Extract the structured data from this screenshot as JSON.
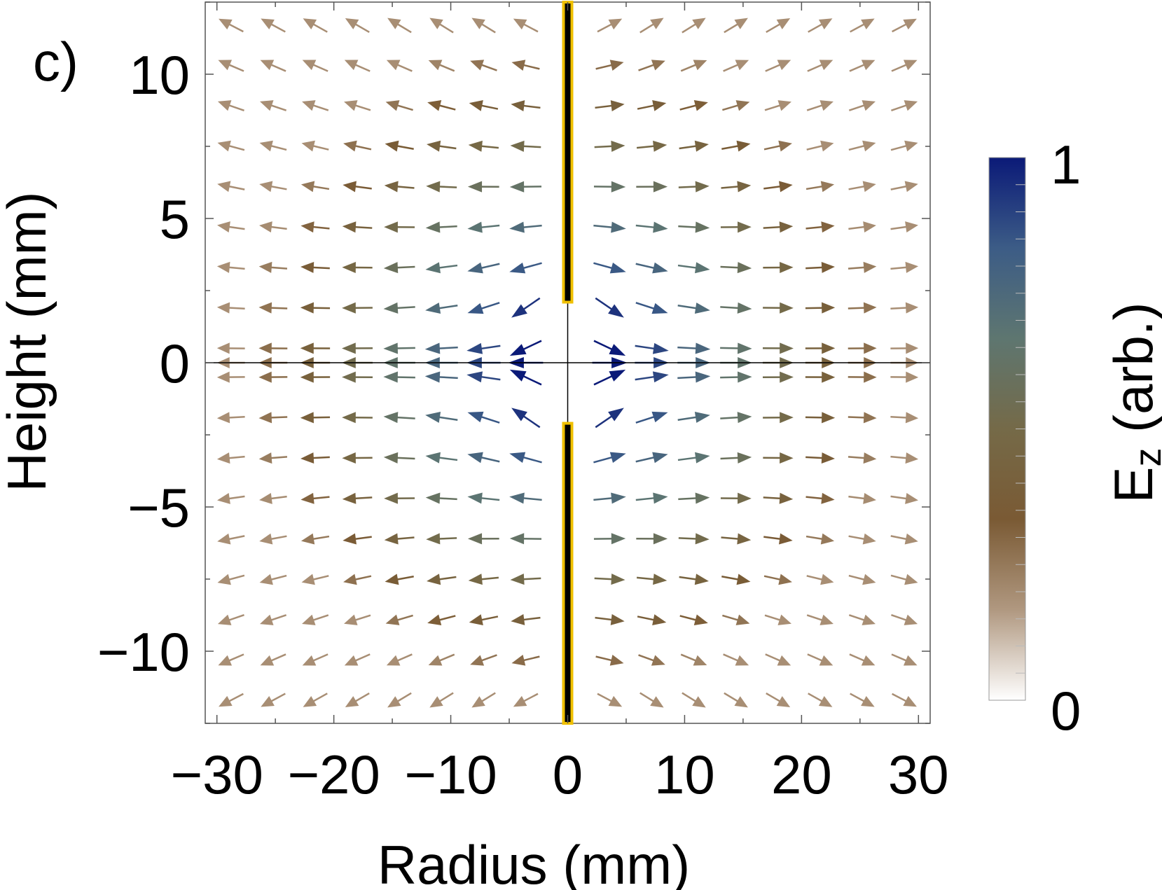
{
  "panel_label": "c)",
  "chart_data": {
    "type": "vector_field",
    "xlabel": "Radius (mm)",
    "ylabel": "Height (mm)",
    "xlim": [
      -31,
      31
    ],
    "ylim": [
      -12.5,
      12.5
    ],
    "x_ticks": [
      -30,
      -20,
      -10,
      0,
      10,
      20,
      30
    ],
    "x_tick_labels": [
      "−30",
      "−20",
      "−10",
      "0",
      "10",
      "20",
      "30"
    ],
    "y_ticks": [
      -10,
      -5,
      0,
      5,
      10
    ],
    "y_tick_labels": [
      "−10",
      "−5",
      "0",
      "5",
      "10"
    ],
    "field": {
      "description_of_sources": "two collinear electrode rods on the z axis separated by a gap about z = 0",
      "x_grid": [
        -28.8,
        -25.2,
        -21.6,
        -18.0,
        -14.4,
        -10.8,
        -7.2,
        -3.6,
        0,
        3.6,
        7.2,
        10.8,
        14.4,
        18.0,
        21.6,
        25.2,
        28.8
      ],
      "y_grid": [
        -11.7,
        -10.3,
        -8.9,
        -7.5,
        -6.1,
        -4.7,
        -3.3,
        -1.9,
        -0.5,
        0,
        0.5,
        1.9,
        3.3,
        4.7,
        6.1,
        7.5,
        8.9,
        10.3,
        11.7
      ]
    },
    "electrodes": [
      {
        "x": 0,
        "y_from": 2.1,
        "y_to": 12.5
      },
      {
        "x": 0,
        "y_from": -12.5,
        "y_to": -2.1
      }
    ],
    "colorbar": {
      "label": "Ez (arb.)",
      "label_main": "E",
      "label_sub": "z",
      "label_rest": " (arb.)",
      "min": 0,
      "max": 1,
      "min_label": "0",
      "max_label": "1",
      "colors": [
        "#ffffff",
        "#b09880",
        "#7a5a34",
        "#756a48",
        "#5e7670",
        "#3c5c86",
        "#0b1a78"
      ]
    },
    "colors": {
      "electrode_fill": "#000000",
      "electrode_outline": "#f0c000",
      "axis_line": "#000000"
    }
  }
}
